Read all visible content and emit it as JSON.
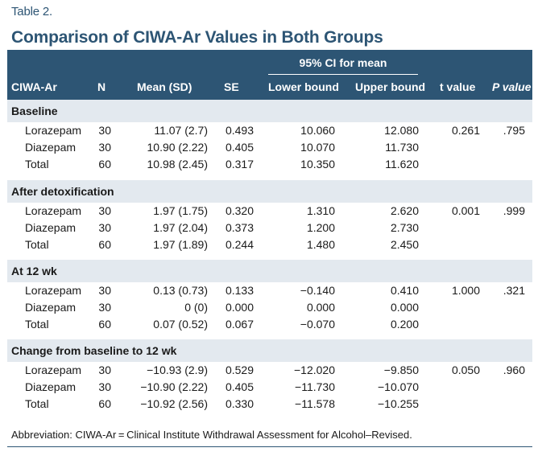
{
  "table_label": "Table 2.",
  "title": "Comparison of CIWA-Ar Values in Both Groups",
  "ci_header": "95% CI for mean",
  "headers": [
    "CIWA-Ar",
    "N",
    "Mean (SD)",
    "SE",
    "Lower bound",
    "Upper bound",
    "t value",
    "P value"
  ],
  "sections": [
    {
      "name": "Baseline",
      "t": "0.261",
      "p": ".795",
      "rows": [
        [
          "Lorazepam",
          "30",
          "11.07 (2.7)",
          "0.493",
          "10.060",
          "12.080"
        ],
        [
          "Diazepam",
          "30",
          "10.90 (2.22)",
          "0.405",
          "10.070",
          "11.730"
        ],
        [
          "Total",
          "60",
          "10.98 (2.45)",
          "0.317",
          "10.350",
          "11.620"
        ]
      ]
    },
    {
      "name": "After detoxification",
      "t": "0.001",
      "p": ".999",
      "rows": [
        [
          "Lorazepam",
          "30",
          "1.97 (1.75)",
          "0.320",
          "1.310",
          "2.620"
        ],
        [
          "Diazepam",
          "30",
          "1.97 (2.04)",
          "0.373",
          "1.200",
          "2.730"
        ],
        [
          "Total",
          "60",
          "1.97 (1.89)",
          "0.244",
          "1.480",
          "2.450"
        ]
      ]
    },
    {
      "name": "At 12 wk",
      "t": "1.000",
      "p": ".321",
      "rows": [
        [
          "Lorazepam",
          "30",
          "0.13 (0.73)",
          "0.133",
          "−0.140",
          "0.410"
        ],
        [
          "Diazepam",
          "30",
          "0 (0)",
          "0.000",
          "0.000",
          "0.000"
        ],
        [
          "Total",
          "60",
          "0.07 (0.52)",
          "0.067",
          "−0.070",
          "0.200"
        ]
      ]
    },
    {
      "name": "Change from baseline to 12 wk",
      "t": "0.050",
      "p": ".960",
      "rows": [
        [
          "Lorazepam",
          "30",
          "−10.93 (2.9)",
          "0.529",
          "−12.020",
          "−9.850"
        ],
        [
          "Diazepam",
          "30",
          "−10.90 (2.22)",
          "0.405",
          "−11.730",
          "−10.070"
        ],
        [
          "Total",
          "60",
          "−10.92 (2.56)",
          "0.330",
          "−11.578",
          "−10.255"
        ]
      ]
    }
  ],
  "footnote": "Abbreviation: CIWA-Ar = Clinical Institute Withdrawal Assessment for Alcohol–Revised.",
  "colors": {
    "header_bg": "#2d5574",
    "section_bg": "#e3e9ef"
  }
}
